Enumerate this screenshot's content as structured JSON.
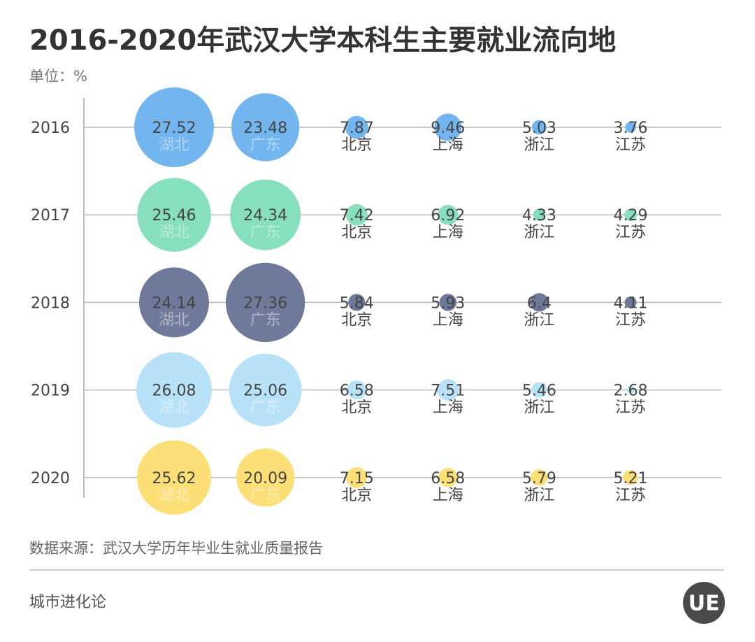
{
  "chart_data": {
    "type": "bubble",
    "title": "2016-2020年武汉大学本科生主要就业流向地",
    "subtitle": "单位：%",
    "source": "数据来源：武汉大学历年毕业生就业质量报告",
    "footer": "城市进化论",
    "logo": "UE",
    "columns": [
      "湖北",
      "广东",
      "北京",
      "上海",
      "浙江",
      "江苏"
    ],
    "series": [
      {
        "name": "2016",
        "color": "#72b5ef",
        "values": [
          27.52,
          23.48,
          7.87,
          9.46,
          5.03,
          3.76
        ]
      },
      {
        "name": "2017",
        "color": "#86dfbd",
        "values": [
          25.46,
          24.34,
          7.42,
          6.92,
          4.33,
          4.29
        ]
      },
      {
        "name": "2018",
        "color": "#6f7999",
        "values": [
          24.14,
          27.36,
          5.84,
          5.93,
          6.4,
          4.11
        ]
      },
      {
        "name": "2019",
        "color": "#b8e2f8",
        "values": [
          26.08,
          25.06,
          6.58,
          7.51,
          5.46,
          2.68
        ]
      },
      {
        "name": "2020",
        "color": "#fddf78",
        "values": [
          25.62,
          20.09,
          7.15,
          6.58,
          5.79,
          5.21
        ]
      }
    ]
  }
}
